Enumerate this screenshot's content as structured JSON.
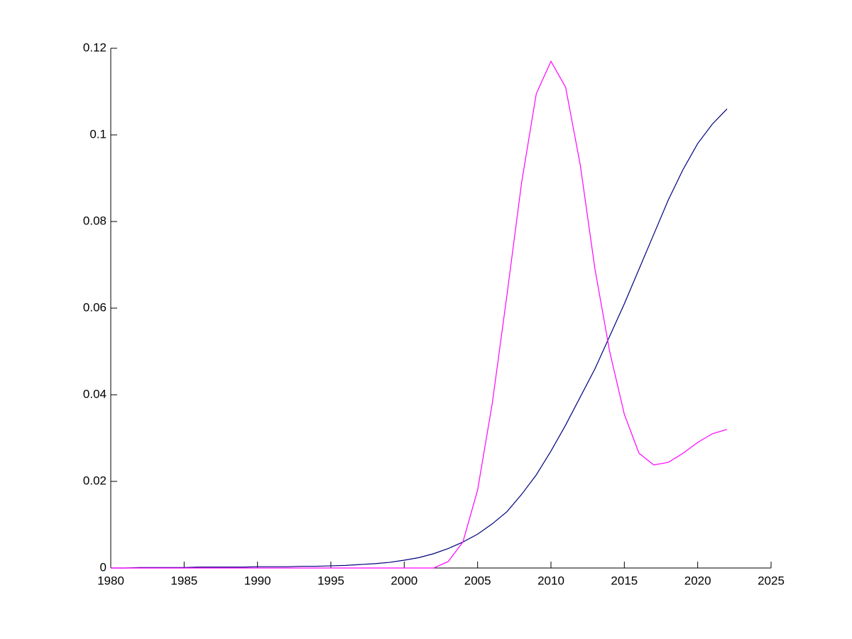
{
  "chart_data": {
    "type": "line",
    "x": [
      1980,
      1981,
      1982,
      1983,
      1984,
      1985,
      1986,
      1987,
      1988,
      1989,
      1990,
      1991,
      1992,
      1993,
      1994,
      1995,
      1996,
      1997,
      1998,
      1999,
      2000,
      2001,
      2002,
      2003,
      2004,
      2005,
      2006,
      2007,
      2008,
      2009,
      2010,
      2011,
      2012,
      2013,
      2014,
      2015,
      2016,
      2017,
      2018,
      2019,
      2020,
      2021,
      2022
    ],
    "series": [
      {
        "color": "#00007f",
        "values": [
          0,
          0,
          0.0001,
          0.0001,
          0.0001,
          0.0001,
          0.0002,
          0.0002,
          0.0002,
          0.0002,
          0.0003,
          0.0003,
          0.0003,
          0.0004,
          0.0004,
          0.0005,
          0.0006,
          0.0008,
          0.001,
          0.0013,
          0.0018,
          0.0024,
          0.0033,
          0.0045,
          0.006,
          0.0078,
          0.0102,
          0.013,
          0.017,
          0.0215,
          0.027,
          0.033,
          0.0395,
          0.046,
          0.0535,
          0.061,
          0.069,
          0.077,
          0.085,
          0.092,
          0.098,
          0.1025,
          0.106
        ]
      },
      {
        "color": "#ff00ff",
        "values": [
          0,
          0,
          0,
          0,
          0,
          0,
          0,
          0,
          0,
          0,
          0,
          0,
          0,
          0,
          0,
          0,
          0,
          0,
          0,
          0,
          0,
          0,
          0,
          0.0015,
          0.006,
          0.018,
          0.038,
          0.063,
          0.089,
          0.1095,
          0.117,
          0.111,
          0.093,
          0.069,
          0.05,
          0.0355,
          0.0265,
          0.0238,
          0.0244,
          0.0265,
          0.029,
          0.031,
          0.032
        ]
      }
    ],
    "xlim": [
      1980,
      2025
    ],
    "xticks": [
      1980,
      1985,
      1990,
      1995,
      2000,
      2005,
      2010,
      2015,
      2020,
      2025
    ],
    "ylim": [
      0,
      0.12
    ],
    "yticks": [
      0,
      0.02,
      0.04,
      0.06,
      0.08,
      0.1,
      0.12
    ]
  }
}
